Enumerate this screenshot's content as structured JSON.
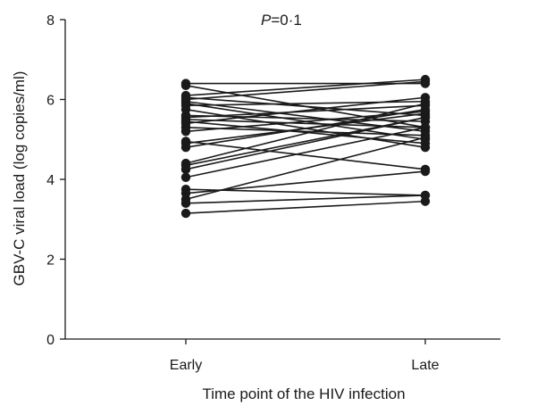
{
  "chart_data": {
    "type": "line",
    "title": "",
    "annotation": {
      "italic_part": "P",
      "rest": "=0·1"
    },
    "xlabel": "Time point of the HIV infection",
    "ylabel": "GBV-C viral load (log copies/ml)",
    "categories": [
      "Early",
      "Late"
    ],
    "ylim": [
      0,
      8
    ],
    "yticks": [
      0,
      2,
      4,
      6,
      8
    ],
    "ytick_labels": [
      "0",
      "2",
      "4",
      "6",
      "8"
    ],
    "grid": false,
    "legend": "none",
    "colors": {
      "line": "#1a1a1a",
      "marker": "#1a1a1a",
      "axis": "#1a1a1a"
    },
    "series": [
      {
        "values": [
          6.4,
          6.4
        ]
      },
      {
        "values": [
          6.35,
          5.3
        ]
      },
      {
        "values": [
          6.1,
          6.5
        ]
      },
      {
        "values": [
          6.05,
          5.6
        ]
      },
      {
        "values": [
          6.0,
          6.45
        ]
      },
      {
        "values": [
          5.95,
          5.2
        ]
      },
      {
        "values": [
          5.9,
          5.0
        ]
      },
      {
        "values": [
          5.85,
          5.95
        ]
      },
      {
        "values": [
          5.75,
          4.8
        ]
      },
      {
        "values": [
          5.6,
          5.45
        ]
      },
      {
        "values": [
          5.55,
          5.85
        ]
      },
      {
        "values": [
          5.5,
          5.3
        ]
      },
      {
        "values": [
          5.45,
          4.9
        ]
      },
      {
        "values": [
          5.4,
          6.05
        ]
      },
      {
        "values": [
          5.3,
          5.1
        ]
      },
      {
        "values": [
          5.2,
          5.7
        ]
      },
      {
        "values": [
          4.95,
          4.25
        ]
      },
      {
        "values": [
          4.9,
          5.65
        ]
      },
      {
        "values": [
          4.8,
          5.75
        ]
      },
      {
        "values": [
          4.4,
          5.9
        ]
      },
      {
        "values": [
          4.35,
          5.55
        ]
      },
      {
        "values": [
          4.25,
          5.55
        ]
      },
      {
        "values": [
          4.05,
          5.3
        ]
      },
      {
        "values": [
          3.75,
          3.6
        ]
      },
      {
        "values": [
          3.65,
          4.2
        ]
      },
      {
        "values": [
          3.5,
          5.05
        ]
      },
      {
        "values": [
          3.4,
          3.6
        ]
      },
      {
        "values": [
          3.15,
          3.45
        ]
      }
    ]
  }
}
